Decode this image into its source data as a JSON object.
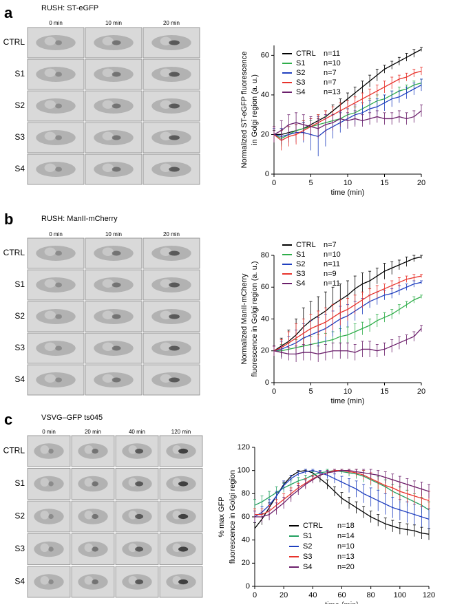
{
  "panels": [
    {
      "label": "a",
      "title": "RUSH:  ST-eGFP",
      "columns": [
        "0 min",
        "10 min",
        "20 min"
      ],
      "rows": [
        "CTRL",
        "S1",
        "S2",
        "S3",
        "S4"
      ]
    },
    {
      "label": "b",
      "title": "RUSH:  ManII-mCherry",
      "columns": [
        "0 min",
        "10 min",
        "20 min"
      ],
      "rows": [
        "CTRL",
        "S1",
        "S2",
        "S3",
        "S4"
      ]
    },
    {
      "label": "c",
      "title": "VSVG–GFP ts045",
      "columns": [
        "0 min",
        "20 min",
        "40 min",
        "120 min"
      ],
      "rows": [
        "CTRL",
        "S1",
        "S2",
        "S3",
        "S4"
      ]
    }
  ],
  "chart_data": [
    {
      "type": "line",
      "ylabel": [
        "Normalized ST-eGFP fluorescence",
        "in Golgi region (a. u.)"
      ],
      "xlabel": "time (min)",
      "x": [
        0,
        1,
        2,
        3,
        4,
        5,
        6,
        7,
        8,
        9,
        10,
        11,
        12,
        13,
        14,
        15,
        16,
        17,
        18,
        19,
        20
      ],
      "xlim": [
        0,
        20
      ],
      "xticks": [
        0,
        5,
        10,
        15,
        20
      ],
      "ylim": [
        0,
        65
      ],
      "yticks": [
        0,
        20,
        40,
        60
      ],
      "series": [
        {
          "name": "CTRL",
          "n": "n=11",
          "color": "#000000",
          "values": [
            20,
            20,
            21,
            22,
            23,
            25,
            27,
            29,
            32,
            35,
            38,
            41,
            44,
            47,
            50,
            53,
            55,
            57,
            59,
            61,
            63
          ],
          "errors": [
            2,
            3,
            3,
            3,
            3,
            3,
            3,
            3,
            3,
            3,
            3,
            3,
            3,
            3,
            3,
            2,
            2,
            2,
            2,
            2,
            1
          ]
        },
        {
          "name": "S1",
          "n": "n=10",
          "color": "#2fae4a",
          "values": [
            20,
            18,
            20,
            22,
            23,
            24,
            25,
            26,
            27,
            28,
            30,
            31,
            33,
            35,
            37,
            38,
            40,
            42,
            43,
            45,
            46
          ],
          "errors": [
            3,
            4,
            4,
            4,
            4,
            3,
            3,
            3,
            3,
            3,
            3,
            3,
            3,
            3,
            3,
            2,
            2,
            2,
            2,
            2,
            2
          ]
        },
        {
          "name": "S2",
          "n": "n=7",
          "color": "#1f3fbf",
          "values": [
            20,
            19,
            20,
            21,
            21,
            20,
            19,
            22,
            24,
            26,
            28,
            30,
            31,
            33,
            34,
            36,
            38,
            39,
            41,
            43,
            45
          ],
          "errors": [
            3,
            4,
            4,
            5,
            5,
            8,
            10,
            8,
            6,
            5,
            5,
            5,
            5,
            4,
            4,
            4,
            4,
            3,
            3,
            3,
            3
          ]
        },
        {
          "name": "S3",
          "n": "n=7",
          "color": "#e8322b",
          "values": [
            20,
            17,
            19,
            20,
            22,
            24,
            26,
            28,
            30,
            32,
            34,
            36,
            38,
            40,
            42,
            44,
            46,
            48,
            49,
            51,
            52
          ],
          "errors": [
            4,
            5,
            5,
            5,
            5,
            4,
            4,
            4,
            4,
            4,
            3,
            3,
            3,
            3,
            3,
            3,
            3,
            2,
            2,
            2,
            2
          ]
        },
        {
          "name": "S4",
          "n": "n=13",
          "color": "#6b1f6b",
          "values": [
            20,
            22,
            25,
            26,
            25,
            24,
            23,
            25,
            26,
            28,
            27,
            28,
            27,
            28,
            29,
            28,
            28,
            29,
            28,
            29,
            32
          ],
          "errors": [
            4,
            5,
            5,
            5,
            5,
            5,
            5,
            5,
            4,
            4,
            4,
            4,
            3,
            3,
            3,
            3,
            3,
            3,
            3,
            3,
            3
          ]
        }
      ]
    },
    {
      "type": "line",
      "ylabel": [
        "Normalized ManII-mCherry",
        "fluorescence in Golgi region (a. u.)"
      ],
      "xlabel": "time (min)",
      "x": [
        0,
        1,
        2,
        3,
        4,
        5,
        6,
        7,
        8,
        9,
        10,
        11,
        12,
        13,
        14,
        15,
        16,
        17,
        18,
        19,
        20
      ],
      "xlim": [
        0,
        20
      ],
      "xticks": [
        0,
        5,
        10,
        15,
        20
      ],
      "ylim": [
        0,
        80
      ],
      "yticks": [
        0,
        20,
        40,
        60,
        80
      ],
      "series": [
        {
          "name": "CTRL",
          "n": "n=7",
          "color": "#000000",
          "values": [
            20,
            23,
            26,
            30,
            35,
            39,
            42,
            45,
            49,
            52,
            55,
            59,
            62,
            64,
            67,
            70,
            72,
            74,
            76,
            78,
            79
          ],
          "errors": [
            3,
            5,
            7,
            10,
            12,
            12,
            12,
            12,
            11,
            10,
            9,
            8,
            7,
            6,
            5,
            5,
            4,
            3,
            3,
            2,
            1
          ]
        },
        {
          "name": "S1",
          "n": "n=10",
          "color": "#2fae4a",
          "values": [
            20,
            20,
            21,
            22,
            23,
            24,
            25,
            26,
            27,
            29,
            30,
            32,
            34,
            36,
            39,
            41,
            43,
            46,
            49,
            52,
            54
          ],
          "errors": [
            3,
            4,
            4,
            5,
            5,
            5,
            5,
            5,
            5,
            5,
            5,
            5,
            4,
            4,
            4,
            3,
            3,
            3,
            2,
            2,
            1
          ]
        },
        {
          "name": "S2",
          "n": "n=11",
          "color": "#1f3fbf",
          "values": [
            20,
            21,
            23,
            25,
            28,
            30,
            32,
            34,
            37,
            40,
            42,
            45,
            48,
            51,
            53,
            55,
            56,
            58,
            60,
            62,
            63
          ],
          "errors": [
            3,
            5,
            6,
            8,
            9,
            9,
            9,
            9,
            8,
            8,
            7,
            6,
            5,
            4,
            4,
            3,
            3,
            3,
            2,
            2,
            1
          ]
        },
        {
          "name": "S3",
          "n": "n=9",
          "color": "#e8322b",
          "values": [
            20,
            22,
            25,
            28,
            31,
            34,
            36,
            38,
            41,
            44,
            46,
            49,
            52,
            55,
            57,
            59,
            61,
            63,
            65,
            66,
            67
          ],
          "errors": [
            3,
            5,
            7,
            9,
            9,
            9,
            9,
            9,
            8,
            8,
            7,
            6,
            5,
            4,
            4,
            3,
            3,
            3,
            2,
            2,
            1
          ]
        },
        {
          "name": "S4",
          "n": "n=11",
          "color": "#6b1f6b",
          "values": [
            20,
            19,
            18,
            18,
            19,
            19,
            18,
            19,
            20,
            20,
            20,
            19,
            21,
            21,
            20,
            21,
            23,
            25,
            27,
            29,
            34
          ],
          "errors": [
            3,
            4,
            4,
            5,
            5,
            5,
            5,
            5,
            5,
            5,
            5,
            5,
            5,
            5,
            4,
            4,
            4,
            4,
            3,
            3,
            2
          ]
        }
      ]
    },
    {
      "type": "line",
      "ylabel": [
        "% max GFP",
        "fluorescence in Golgi region"
      ],
      "xlabel": "time (min)",
      "x": [
        0,
        5,
        10,
        15,
        20,
        25,
        30,
        35,
        40,
        45,
        50,
        55,
        60,
        65,
        70,
        75,
        80,
        85,
        90,
        95,
        100,
        105,
        110,
        115,
        120
      ],
      "xlim": [
        0,
        120
      ],
      "xticks": [
        0,
        20,
        40,
        60,
        80,
        100,
        120
      ],
      "ylim": [
        0,
        120
      ],
      "yticks": [
        0,
        20,
        40,
        60,
        80,
        100,
        120
      ],
      "series": [
        {
          "name": "CTRL",
          "n": "n=18",
          "color": "#000000",
          "values": [
            50,
            58,
            68,
            78,
            88,
            95,
            99,
            100,
            98,
            93,
            88,
            82,
            76,
            72,
            68,
            64,
            60,
            57,
            54,
            52,
            50,
            49,
            48,
            46,
            45
          ],
          "errors": [
            5,
            5,
            4,
            3,
            2,
            1,
            1,
            1,
            2,
            3,
            4,
            4,
            5,
            5,
            5,
            5,
            5,
            5,
            5,
            5,
            5,
            5,
            5,
            5,
            5
          ]
        },
        {
          "name": "S1",
          "n": "n=14",
          "color": "#22a060",
          "values": [
            70,
            73,
            77,
            81,
            85,
            88,
            91,
            93,
            96,
            98,
            99,
            100,
            99,
            98,
            97,
            95,
            92,
            89,
            86,
            82,
            79,
            76,
            73,
            70,
            66
          ],
          "errors": [
            5,
            5,
            5,
            5,
            4,
            4,
            3,
            3,
            3,
            2,
            2,
            1,
            2,
            3,
            4,
            5,
            5,
            6,
            6,
            6,
            7,
            7,
            7,
            7,
            7
          ]
        },
        {
          "name": "S2",
          "n": "n=10",
          "color": "#1f3fbf",
          "values": [
            60,
            64,
            70,
            78,
            87,
            93,
            97,
            99,
            100,
            98,
            96,
            93,
            90,
            87,
            84,
            80,
            77,
            74,
            71,
            68,
            66,
            64,
            62,
            60,
            58
          ],
          "errors": [
            5,
            5,
            5,
            4,
            4,
            3,
            2,
            2,
            1,
            2,
            3,
            4,
            5,
            6,
            7,
            8,
            8,
            9,
            9,
            9,
            9,
            9,
            9,
            9,
            9
          ]
        },
        {
          "name": "S3",
          "n": "n=13",
          "color": "#e8322b",
          "values": [
            62,
            62,
            65,
            70,
            75,
            80,
            85,
            89,
            93,
            96,
            98,
            100,
            100,
            99,
            98,
            96,
            93,
            90,
            87,
            85,
            82,
            80,
            78,
            76,
            74
          ],
          "errors": [
            5,
            5,
            5,
            5,
            5,
            5,
            4,
            4,
            3,
            3,
            2,
            1,
            1,
            2,
            3,
            4,
            5,
            6,
            7,
            7,
            8,
            8,
            8,
            8,
            8
          ]
        },
        {
          "name": "S4",
          "n": "n=20",
          "color": "#6b1f6b",
          "values": [
            60,
            60,
            62,
            67,
            72,
            78,
            83,
            88,
            92,
            96,
            98,
            99,
            100,
            100,
            99,
            98,
            97,
            96,
            94,
            92,
            90,
            88,
            86,
            84,
            82
          ],
          "errors": [
            5,
            5,
            5,
            5,
            5,
            5,
            4,
            4,
            3,
            3,
            2,
            2,
            1,
            1,
            2,
            3,
            4,
            4,
            5,
            5,
            5,
            5,
            5,
            6,
            6
          ]
        }
      ]
    }
  ]
}
